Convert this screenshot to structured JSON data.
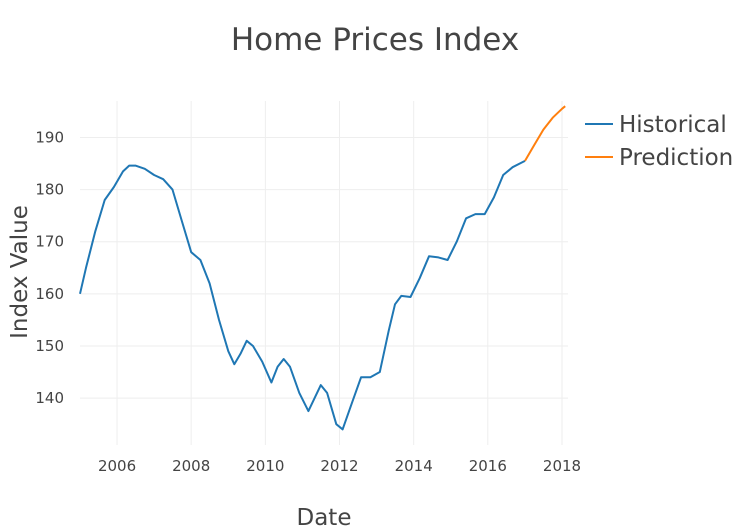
{
  "chart_data": {
    "type": "line",
    "title": "Home Prices Index",
    "xlabel": "Date",
    "ylabel": "Index Value",
    "xlim": [
      "2005-01-01",
      "2018-03-01"
    ],
    "ylim": [
      131,
      197
    ],
    "x_ticks": [
      {
        "value": "2006-01-01",
        "label": "2006"
      },
      {
        "value": "2008-01-01",
        "label": "2008"
      },
      {
        "value": "2010-01-01",
        "label": "2010"
      },
      {
        "value": "2012-01-01",
        "label": "2012"
      },
      {
        "value": "2014-01-01",
        "label": "2014"
      },
      {
        "value": "2016-01-01",
        "label": "2016"
      },
      {
        "value": "2018-01-01",
        "label": "2018"
      }
    ],
    "y_ticks": [
      140,
      150,
      160,
      170,
      180,
      190
    ],
    "grid": true,
    "legend": "top-right",
    "series": [
      {
        "name": "Historical",
        "color": "#1f77b4",
        "points": [
          [
            "2005-01-01",
            160.0
          ],
          [
            "2005-03-01",
            165.0
          ],
          [
            "2005-06-01",
            172.0
          ],
          [
            "2005-09-01",
            178.0
          ],
          [
            "2005-12-01",
            180.5
          ],
          [
            "2006-03-01",
            183.5
          ],
          [
            "2006-05-01",
            184.6
          ],
          [
            "2006-07-01",
            184.6
          ],
          [
            "2006-10-01",
            184.0
          ],
          [
            "2007-01-01",
            182.8
          ],
          [
            "2007-04-01",
            182.0
          ],
          [
            "2007-07-01",
            180.0
          ],
          [
            "2007-10-01",
            174.0
          ],
          [
            "2008-01-01",
            168.0
          ],
          [
            "2008-04-01",
            166.5
          ],
          [
            "2008-07-01",
            162.0
          ],
          [
            "2008-10-01",
            155.0
          ],
          [
            "2009-01-01",
            149.0
          ],
          [
            "2009-03-01",
            146.5
          ],
          [
            "2009-05-01",
            148.5
          ],
          [
            "2009-07-01",
            151.0
          ],
          [
            "2009-09-01",
            150.0
          ],
          [
            "2009-12-01",
            147.0
          ],
          [
            "2010-03-01",
            143.0
          ],
          [
            "2010-05-01",
            146.0
          ],
          [
            "2010-07-01",
            147.5
          ],
          [
            "2010-09-01",
            146.0
          ],
          [
            "2010-12-01",
            141.0
          ],
          [
            "2011-03-01",
            137.5
          ],
          [
            "2011-05-01",
            140.0
          ],
          [
            "2011-07-01",
            142.5
          ],
          [
            "2011-09-01",
            141.0
          ],
          [
            "2011-12-01",
            135.0
          ],
          [
            "2012-02-01",
            134.0
          ],
          [
            "2012-05-01",
            139.0
          ],
          [
            "2012-08-01",
            144.0
          ],
          [
            "2012-11-01",
            144.0
          ],
          [
            "2013-02-01",
            145.0
          ],
          [
            "2013-05-01",
            153.0
          ],
          [
            "2013-07-01",
            158.0
          ],
          [
            "2013-09-01",
            159.6
          ],
          [
            "2013-12-01",
            159.4
          ],
          [
            "2014-03-01",
            163.0
          ],
          [
            "2014-06-01",
            167.2
          ],
          [
            "2014-09-01",
            167.0
          ],
          [
            "2014-12-01",
            166.5
          ],
          [
            "2015-03-01",
            170.0
          ],
          [
            "2015-06-01",
            174.5
          ],
          [
            "2015-09-01",
            175.3
          ],
          [
            "2015-12-01",
            175.3
          ],
          [
            "2016-03-01",
            178.5
          ],
          [
            "2016-06-01",
            182.8
          ],
          [
            "2016-09-01",
            184.3
          ],
          [
            "2016-12-01",
            185.2
          ],
          [
            "2017-01-01",
            185.5
          ]
        ]
      },
      {
        "name": "Prediction",
        "color": "#ff7f0e",
        "points": [
          [
            "2017-01-01",
            185.5
          ],
          [
            "2017-04-01",
            188.5
          ],
          [
            "2017-07-01",
            191.5
          ],
          [
            "2017-10-01",
            193.8
          ],
          [
            "2018-01-01",
            195.5
          ],
          [
            "2018-02-01",
            196.0
          ]
        ]
      }
    ]
  }
}
